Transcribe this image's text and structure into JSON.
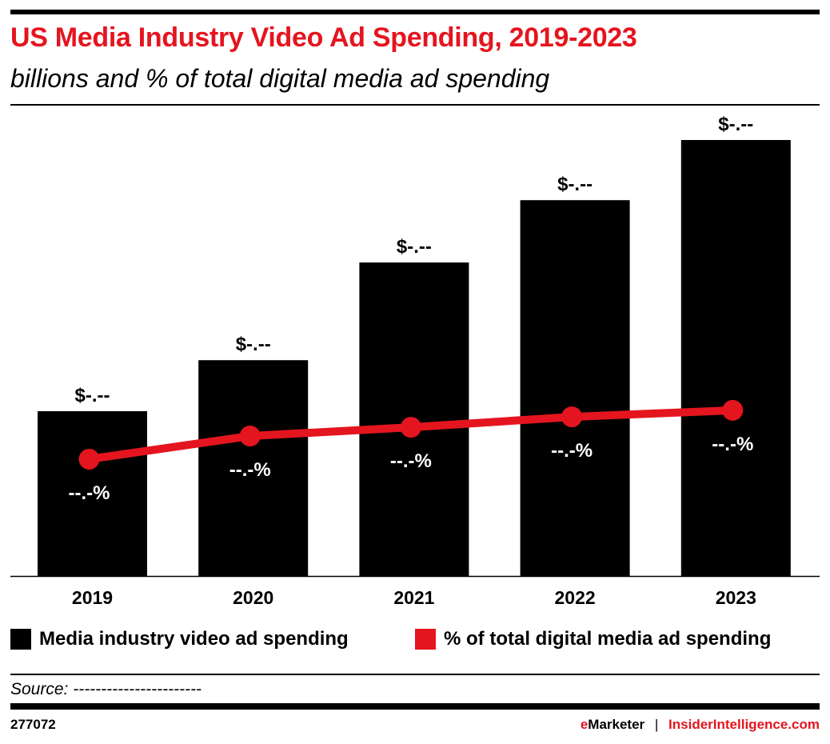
{
  "header": {
    "title": "US Media Industry Video Ad Spending, 2019-2023",
    "subtitle": "billions and % of total digital media ad spending"
  },
  "chart_data": {
    "type": "bar",
    "categories": [
      "2019",
      "2020",
      "2021",
      "2022",
      "2023"
    ],
    "series": [
      {
        "name": "Media industry video ad spending",
        "kind": "bar",
        "color": "#000000",
        "values_relative": [
          37.8,
          49.5,
          71.9,
          86.2,
          100
        ],
        "labels": [
          "$-.--",
          "$-.--",
          "$-.--",
          "$-.--",
          "$-.--"
        ]
      },
      {
        "name": "% of total digital media ad spending",
        "kind": "line",
        "color": "#e4151f",
        "values_relative": [
          26.8,
          32.1,
          34.1,
          36.5,
          38.0
        ],
        "labels": [
          "--.-%",
          "--.-%",
          "--.-%",
          "--.-%",
          "--.-%"
        ]
      }
    ],
    "grid": false,
    "legend": "bottom"
  },
  "footer": {
    "source": "Source: -----------------------",
    "id": "277072",
    "brand_e": "e",
    "brand_marketer": "Marketer",
    "separator": "|",
    "brand_site": "InsiderIntelligence.com"
  },
  "colors": {
    "accent": "#e4151f",
    "bar": "#000000"
  }
}
